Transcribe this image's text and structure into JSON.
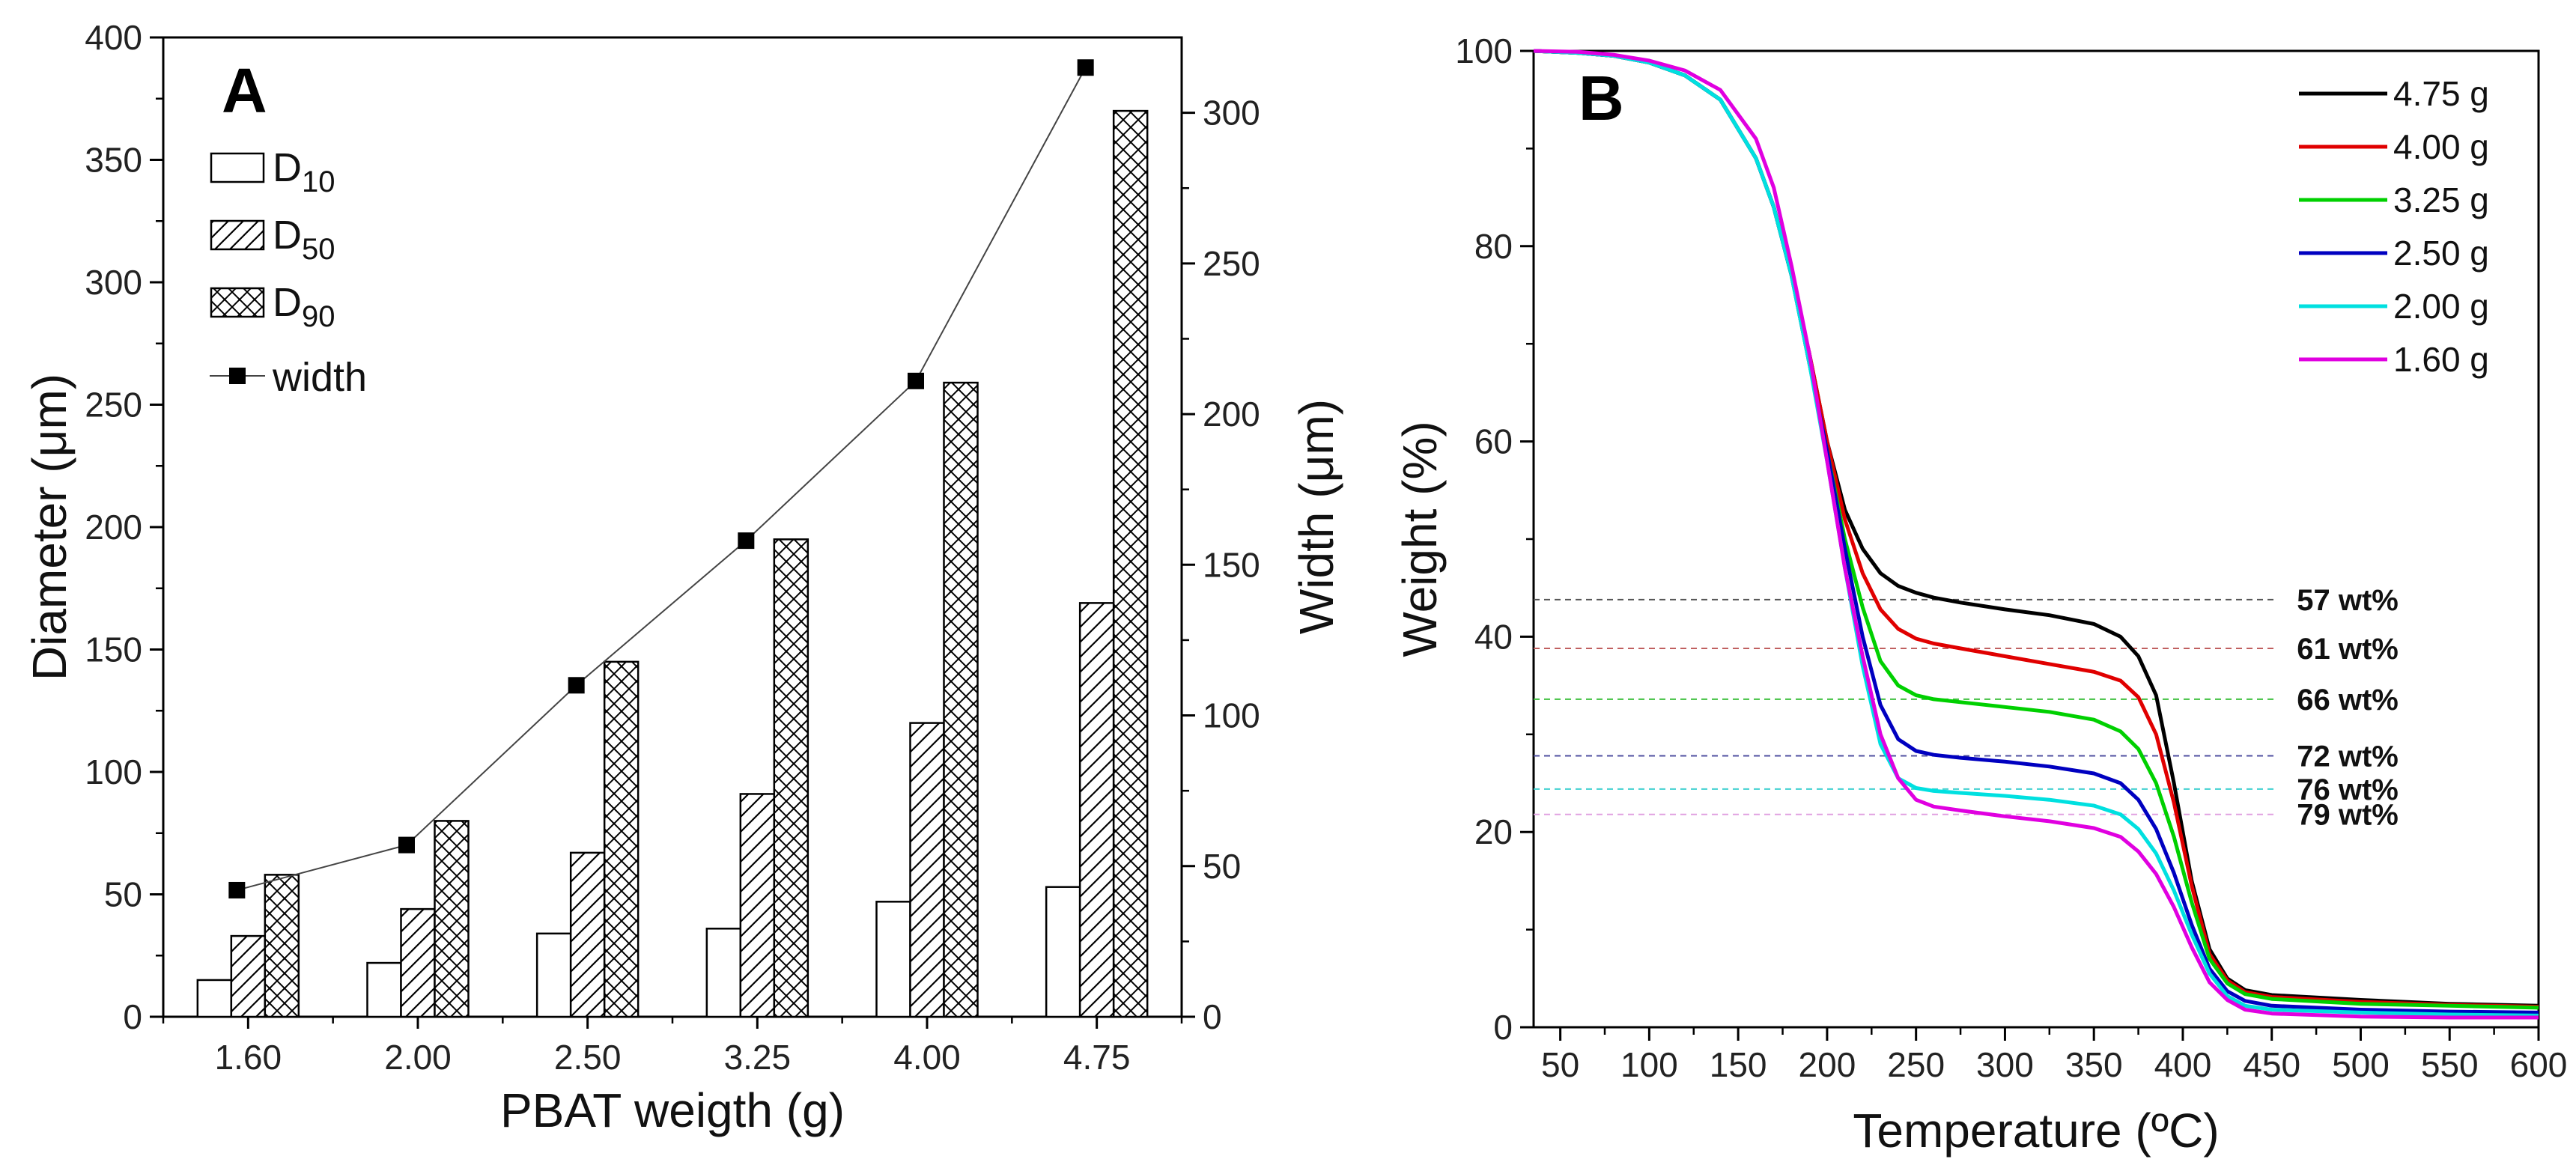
{
  "chart_data": [
    {
      "type": "bar",
      "panel": "A",
      "categories": [
        "1.60",
        "2.00",
        "2.50",
        "3.25",
        "4.00",
        "4.75"
      ],
      "xlabel": "PBAT weigth (g)",
      "ylabel": "Diameter (μm)",
      "ylabel_right": "Width (μm)",
      "ylim": [
        0,
        400
      ],
      "ylim_right": [
        0,
        325
      ],
      "yticks": [
        "0",
        "50",
        "100",
        "150",
        "200",
        "250",
        "300",
        "350",
        "400"
      ],
      "yticks_right": [
        "0",
        "50",
        "100",
        "150",
        "200",
        "250",
        "300"
      ],
      "series": [
        {
          "name": "D10",
          "label_main": "D",
          "label_sub": "10",
          "pattern": "empty",
          "values": [
            15,
            22,
            34,
            36,
            47,
            53
          ]
        },
        {
          "name": "D50",
          "label_main": "D",
          "label_sub": "50",
          "pattern": "hatch",
          "values": [
            33,
            44,
            67,
            91,
            120,
            169
          ]
        },
        {
          "name": "D90",
          "label_main": "D",
          "label_sub": "90",
          "pattern": "crosshatch",
          "values": [
            58,
            80,
            145,
            195,
            259,
            370
          ]
        }
      ],
      "line_series": {
        "name": "width",
        "axis": "right",
        "values": [
          42,
          57,
          110,
          158,
          211,
          315
        ]
      }
    },
    {
      "type": "line",
      "panel": "B",
      "xlabel": "Temperature (ºC)",
      "ylabel": "Weight (%)",
      "xlim": [
        35,
        600
      ],
      "ylim": [
        0,
        100
      ],
      "xticks": [
        "50",
        "100",
        "150",
        "200",
        "250",
        "300",
        "350",
        "400",
        "450",
        "500",
        "550",
        "600"
      ],
      "yticks": [
        "0",
        "20",
        "40",
        "60",
        "80",
        "100"
      ],
      "legend_position": "top-right",
      "series": [
        {
          "name": "4.75 g",
          "color": "#000000",
          "x": [
            35,
            60,
            80,
            100,
            120,
            140,
            160,
            170,
            180,
            190,
            200,
            210,
            220,
            230,
            240,
            250,
            260,
            275,
            300,
            325,
            350,
            365,
            375,
            385,
            395,
            405,
            415,
            425,
            435,
            450,
            500,
            550,
            600
          ],
          "y": [
            100,
            99.8,
            99.5,
            98.8,
            97.5,
            95,
            89,
            84,
            77,
            69,
            60,
            53,
            49,
            46.5,
            45.2,
            44.5,
            44,
            43.5,
            42.8,
            42.2,
            41.3,
            40,
            38,
            34,
            25,
            15,
            8,
            5,
            3.8,
            3.3,
            2.8,
            2.4,
            2.2
          ]
        },
        {
          "name": "4.00 g",
          "color": "#e00000",
          "x": [
            35,
            60,
            80,
            100,
            120,
            140,
            160,
            170,
            180,
            190,
            200,
            210,
            220,
            230,
            240,
            250,
            260,
            275,
            300,
            325,
            350,
            365,
            375,
            385,
            395,
            405,
            415,
            425,
            435,
            450,
            500,
            550,
            600
          ],
          "y": [
            100,
            99.8,
            99.5,
            98.8,
            97.5,
            95,
            89,
            84,
            77,
            69,
            60,
            52,
            46.5,
            42.8,
            40.8,
            39.8,
            39.3,
            38.8,
            38,
            37.2,
            36.4,
            35.5,
            33.8,
            30,
            23,
            14.5,
            7.5,
            4.8,
            3.6,
            3.1,
            2.6,
            2.3,
            2.1
          ]
        },
        {
          "name": "3.25 g",
          "color": "#00d000",
          "x": [
            35,
            60,
            80,
            100,
            120,
            140,
            160,
            170,
            180,
            190,
            200,
            210,
            220,
            230,
            240,
            250,
            260,
            275,
            300,
            325,
            350,
            365,
            375,
            385,
            395,
            405,
            415,
            425,
            435,
            450,
            500,
            550,
            600
          ],
          "y": [
            100,
            99.8,
            99.5,
            98.8,
            97.5,
            95,
            89,
            84,
            77,
            68,
            59,
            50,
            43,
            37.5,
            35,
            34,
            33.6,
            33.3,
            32.8,
            32.3,
            31.5,
            30.3,
            28.5,
            25,
            19.5,
            12.8,
            7,
            4.5,
            3.4,
            2.9,
            2.4,
            2.2,
            2.0
          ]
        },
        {
          "name": "2.50 g",
          "color": "#0000c0",
          "x": [
            35,
            60,
            80,
            100,
            120,
            140,
            160,
            170,
            180,
            190,
            200,
            210,
            220,
            230,
            240,
            250,
            260,
            275,
            300,
            325,
            350,
            365,
            375,
            385,
            395,
            405,
            415,
            425,
            435,
            450,
            500,
            550,
            600
          ],
          "y": [
            100,
            99.8,
            99.5,
            98.8,
            97.5,
            95,
            89,
            84,
            77,
            68,
            59,
            49,
            40,
            33,
            29.5,
            28.3,
            27.9,
            27.6,
            27.2,
            26.7,
            26,
            25,
            23.3,
            20.3,
            15.8,
            10.5,
            6,
            3.7,
            2.7,
            2.2,
            1.8,
            1.6,
            1.5
          ]
        },
        {
          "name": "2.00 g",
          "color": "#00e0e0",
          "x": [
            35,
            60,
            80,
            100,
            120,
            140,
            160,
            170,
            180,
            190,
            200,
            210,
            220,
            230,
            240,
            250,
            260,
            275,
            300,
            325,
            350,
            365,
            375,
            385,
            395,
            405,
            415,
            425,
            435,
            450,
            500,
            550,
            600
          ],
          "y": [
            100,
            99.8,
            99.5,
            98.8,
            97.5,
            95,
            89,
            84,
            77,
            68,
            58,
            47,
            37,
            29,
            25.5,
            24.5,
            24.2,
            24,
            23.7,
            23.3,
            22.7,
            21.8,
            20.3,
            17.8,
            14,
            9.5,
            5.5,
            3.2,
            2.2,
            1.8,
            1.5,
            1.3,
            1.2
          ]
        },
        {
          "name": "1.60 g",
          "color": "#e000e0",
          "x": [
            35,
            60,
            80,
            100,
            120,
            140,
            160,
            170,
            180,
            190,
            200,
            210,
            220,
            230,
            240,
            250,
            260,
            275,
            300,
            325,
            350,
            365,
            375,
            385,
            395,
            405,
            415,
            425,
            435,
            450,
            500,
            550,
            600
          ],
          "y": [
            100,
            99.9,
            99.6,
            99,
            98,
            96,
            91,
            86,
            78,
            69,
            58,
            47,
            38,
            30,
            25.5,
            23.3,
            22.6,
            22.2,
            21.6,
            21.1,
            20.4,
            19.5,
            18,
            15.7,
            12.3,
            8.2,
            4.6,
            2.8,
            1.8,
            1.4,
            1.1,
            1.0,
            1.0
          ]
        }
      ],
      "reference_lines": [
        {
          "label": "57 wt%",
          "y": 43.8,
          "color": "#555555"
        },
        {
          "label": "61 wt%",
          "y": 38.8,
          "color": "#c06060"
        },
        {
          "label": "66 wt%",
          "y": 33.6,
          "color": "#40c040"
        },
        {
          "label": "72 wt%",
          "y": 27.8,
          "color": "#5050a0"
        },
        {
          "label": "76 wt%",
          "y": 24.4,
          "color": "#40d0d0"
        },
        {
          "label": "79 wt%",
          "y": 21.8,
          "color": "#e0a0e0"
        }
      ]
    }
  ],
  "panel_labels": {
    "a": "A",
    "b": "B"
  },
  "legend_a_line": "width"
}
